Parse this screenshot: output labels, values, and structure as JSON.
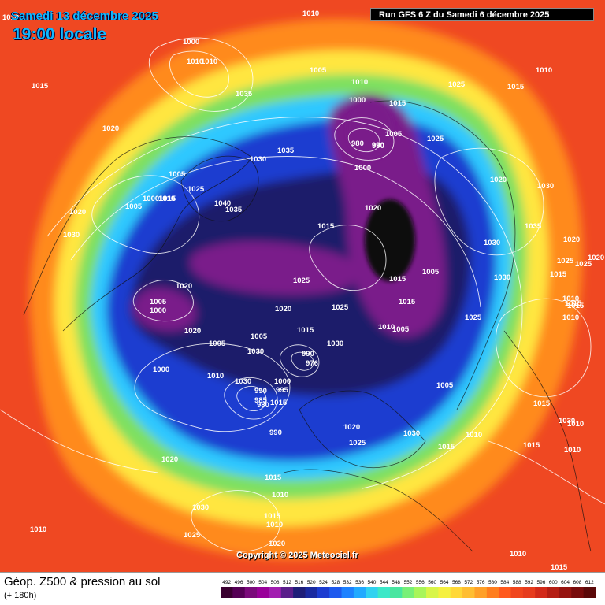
{
  "header": {
    "date": "Samedi 13 décembre 2025",
    "time": "19:00 locale",
    "run": "Run GFS 6 Z du Samedi 6 décembre 2025"
  },
  "copyright": "Copyright © 2025 Meteociel.fr",
  "footer": {
    "title": "Géop. Z500 & pression au sol",
    "range": "(+ 180h)"
  },
  "legend": {
    "ticks": [
      "492",
      "496",
      "500",
      "504",
      "508",
      "512",
      "516",
      "520",
      "524",
      "528",
      "532",
      "536",
      "540",
      "544",
      "548",
      "552",
      "556",
      "560",
      "564",
      "568",
      "572",
      "576",
      "580",
      "584",
      "588",
      "592",
      "596",
      "600",
      "604",
      "608",
      "612"
    ],
    "colors": [
      "#3a0030",
      "#550055",
      "#7a0a7a",
      "#990099",
      "#a21eb0",
      "#5a1e8a",
      "#1e1e78",
      "#1a2aa0",
      "#1c3cd0",
      "#1e5aee",
      "#1e82ff",
      "#22aaff",
      "#31d2f0",
      "#3ce8c8",
      "#48e6a0",
      "#78f078",
      "#a8f55a",
      "#d8f548",
      "#f5f040",
      "#ffd838",
      "#ffbe32",
      "#ffa028",
      "#ff7e1e",
      "#ff5a1e",
      "#f0461e",
      "#e63c1e",
      "#d22a1a",
      "#b41e14",
      "#961410",
      "#780c0c",
      "#5a0808"
    ]
  },
  "map": {
    "colors": {
      "ocean_warm": "#ef4822",
      "orange": "#ff8a1e",
      "yellow": "#ffe640",
      "green": "#7ee060",
      "cyan": "#2ec8ff",
      "blue": "#1e3cd0",
      "navy": "#1a1a6a",
      "purple": "#7a1a8a",
      "core": "#0a0a0a"
    },
    "pressure_labels": [
      "1010",
      "1010",
      "1000",
      "1010",
      "1010",
      "1005",
      "1010",
      "1025",
      "1015",
      "1010",
      "1015",
      "1035",
      "1000",
      "1015",
      "1020",
      "1005",
      "980",
      "990",
      "990",
      "1025",
      "1030",
      "1035",
      "1000",
      "1020",
      "1005",
      "1025",
      "1040",
      "1000",
      "1010",
      "1035",
      "1005",
      "1015",
      "1020",
      "1030",
      "1030",
      "1035",
      "1030",
      "1020",
      "1020",
      "1015",
      "1005",
      "1015",
      "1025",
      "1025",
      "1015",
      "1020",
      "1030",
      "1025",
      "1020",
      "1020",
      "1005",
      "1025",
      "1015",
      "1015",
      "1010",
      "1000",
      "1005",
      "1015",
      "1010",
      "1020",
      "1025",
      "1030",
      "1015",
      "1005",
      "1030",
      "1010",
      "990",
      "976",
      "1010",
      "1000",
      "995",
      "1030",
      "990",
      "985",
      "980",
      "1000",
      "1020",
      "1005",
      "1015",
      "1025",
      "990",
      "1030",
      "1015",
      "1010",
      "1015",
      "1020",
      "1015",
      "1010",
      "1030",
      "1015",
      "1030",
      "1025",
      "1015",
      "1010",
      "1010",
      "1020",
      "1010",
      "1015",
      "1010",
      "1005",
      "1010"
    ]
  }
}
